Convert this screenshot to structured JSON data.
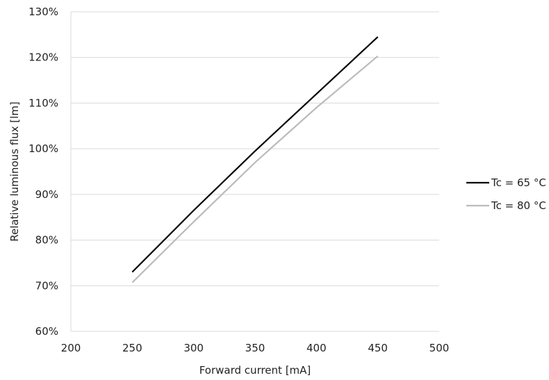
{
  "chart_data": {
    "type": "line",
    "title": "",
    "xlabel": "Forward current [mA]",
    "ylabel": "Relative luminous flux [lm]",
    "xlim": [
      200,
      500
    ],
    "ylim": [
      60,
      130
    ],
    "x_ticks": [
      200,
      250,
      300,
      350,
      400,
      450,
      500
    ],
    "y_ticks": [
      60,
      70,
      80,
      90,
      100,
      110,
      120,
      130
    ],
    "x_tick_labels": [
      "200",
      "250",
      "300",
      "350",
      "400",
      "450",
      "500"
    ],
    "y_tick_labels": [
      "60%",
      "70%",
      "80%",
      "90%",
      "100%",
      "110%",
      "120%",
      "130%"
    ],
    "grid": "horizontal",
    "legend_position": "right",
    "series": [
      {
        "name": "Tc = 65 °C",
        "color": "#000000",
        "x": [
          250,
          300,
          350,
          400,
          450
        ],
        "y": [
          73,
          86.5,
          99.5,
          112,
          124.5
        ]
      },
      {
        "name": "Tc = 80 °C",
        "color": "#bbbbbb",
        "x": [
          250,
          300,
          350,
          400,
          450
        ],
        "y": [
          70.7,
          84,
          97,
          109,
          120.3
        ]
      }
    ]
  }
}
